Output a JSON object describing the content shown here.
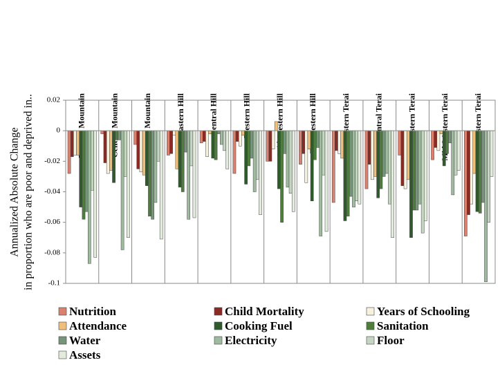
{
  "chart_data": {
    "type": "bar",
    "y_label": [
      "Annualized Absolute Change",
      "in proportion who are poor and deprived in.."
    ],
    "categories": [
      "Eastern Mountain",
      "Central Mountain",
      "Western Mountain",
      "Eastern Hill",
      "Central Hill",
      "Western Hill",
      "Mid-Western Hill",
      "Far-Western Hill",
      "Eastern Terai",
      "Central Terai",
      "Western Terai",
      "Mid-Western Terai",
      "Far-Western Terai"
    ],
    "series": [
      {
        "name": "Nutrition",
        "color": "#d9806e",
        "values": [
          -0.028,
          -0.002,
          -0.009,
          -0.016,
          -0.008,
          -0.028,
          -0.02,
          -0.022,
          -0.047,
          -0.038,
          -0.016,
          -0.019,
          -0.069
        ]
      },
      {
        "name": "Child Mortality",
        "color": "#8b2a22",
        "values": [
          -0.017,
          -0.021,
          -0.025,
          -0.015,
          -0.007,
          -0.007,
          -0.02,
          -0.015,
          -0.013,
          -0.022,
          -0.036,
          -0.011,
          -0.055
        ]
      },
      {
        "name": "Years of Schooling",
        "color": "#f7f2df",
        "values": [
          -0.016,
          -0.028,
          -0.027,
          -0.003,
          -0.017,
          -0.01,
          -0.012,
          -0.034,
          -0.015,
          -0.032,
          -0.038,
          -0.013,
          -0.048
        ]
      },
      {
        "name": "Attendance",
        "color": "#f0c07a",
        "values": [
          -0.016,
          -0.026,
          -0.029,
          -0.025,
          -0.002,
          -0.003,
          0.006,
          -0.012,
          -0.018,
          -0.03,
          -0.032,
          -0.002,
          -0.028
        ]
      },
      {
        "name": "Cooking Fuel",
        "color": "#2f5a2c",
        "values": [
          -0.05,
          -0.034,
          -0.036,
          -0.037,
          -0.018,
          -0.035,
          -0.038,
          -0.046,
          -0.059,
          -0.044,
          -0.07,
          -0.023,
          -0.053
        ]
      },
      {
        "name": "Sanitation",
        "color": "#4f7d3e",
        "values": [
          -0.058,
          -0.006,
          -0.056,
          -0.04,
          -0.019,
          -0.023,
          -0.06,
          -0.019,
          -0.056,
          -0.038,
          -0.052,
          -0.015,
          -0.054
        ]
      },
      {
        "name": "Water",
        "color": "#76957a",
        "values": [
          -0.053,
          -0.006,
          -0.058,
          -0.014,
          -0.002,
          -0.018,
          -0.015,
          -0.011,
          -0.043,
          -0.03,
          -0.052,
          -0.008,
          -0.047
        ]
      },
      {
        "name": "Electricity",
        "color": "#9fbb9f",
        "values": [
          -0.087,
          -0.078,
          -0.047,
          -0.058,
          -0.009,
          -0.04,
          -0.037,
          -0.069,
          -0.05,
          -0.028,
          -0.048,
          -0.042,
          -0.099
        ]
      },
      {
        "name": "Floor",
        "color": "#c4d6c2",
        "values": [
          -0.039,
          -0.03,
          -0.02,
          -0.023,
          -0.013,
          -0.032,
          -0.041,
          -0.029,
          -0.046,
          -0.048,
          -0.067,
          -0.029,
          -0.06
        ]
      },
      {
        "name": "Assets",
        "color": "#e3ecdc",
        "values": [
          -0.083,
          -0.07,
          -0.071,
          -0.057,
          -0.025,
          -0.055,
          -0.053,
          -0.066,
          -0.048,
          -0.07,
          -0.059,
          -0.026,
          -0.03
        ]
      }
    ],
    "ylim": [
      -0.1,
      0.02
    ],
    "yticks": [
      0.02,
      0,
      -0.02,
      -0.04,
      -0.06,
      -0.08,
      -0.1
    ]
  }
}
